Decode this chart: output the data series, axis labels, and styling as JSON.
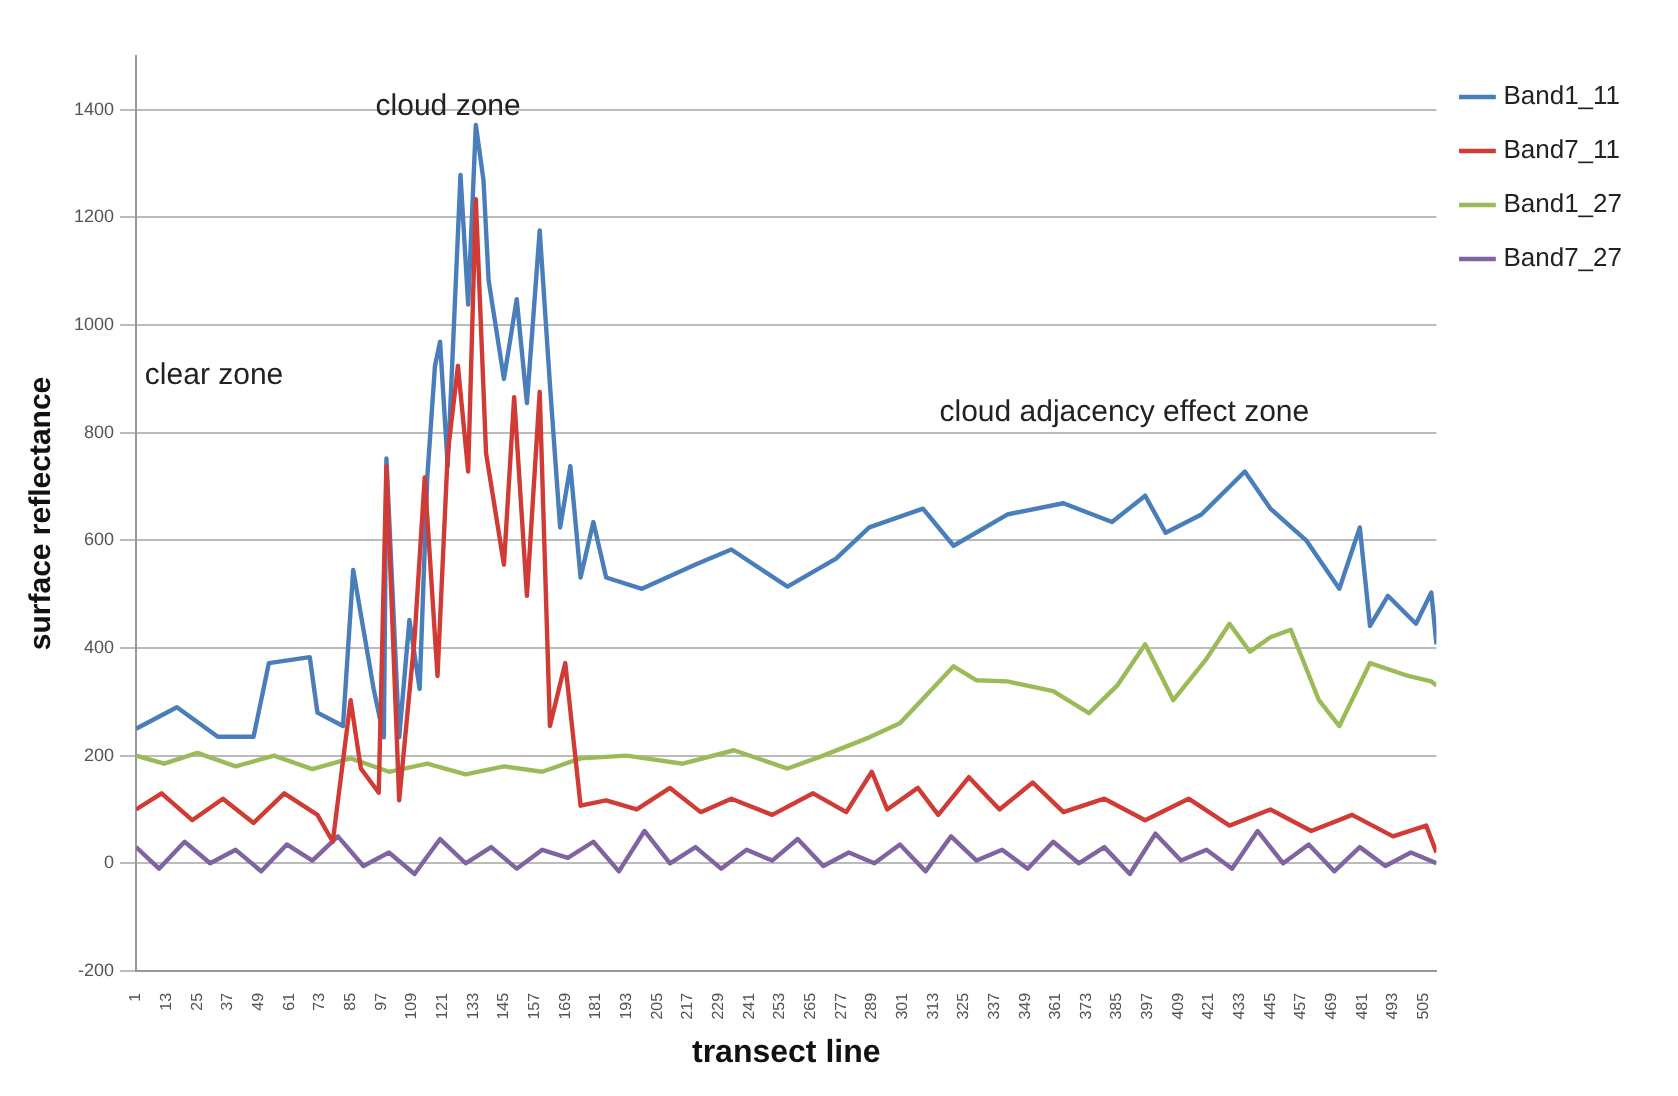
{
  "chart_data": {
    "type": "line",
    "xlabel": "transect line",
    "ylabel": "surface reflectance",
    "xlim": [
      1,
      510
    ],
    "xticks": [
      1,
      13,
      25,
      37,
      49,
      61,
      73,
      85,
      97,
      109,
      121,
      133,
      145,
      157,
      169,
      181,
      193,
      205,
      217,
      229,
      241,
      253,
      265,
      277,
      289,
      301,
      313,
      325,
      337,
      349,
      361,
      373,
      385,
      397,
      409,
      421,
      433,
      445,
      457,
      469,
      481,
      493,
      505
    ],
    "ylim": [
      -200,
      1500
    ],
    "yticks": [
      -200,
      0,
      200,
      400,
      600,
      800,
      1000,
      1200,
      1400
    ],
    "grid": "y",
    "legend": "top right",
    "marker": "none",
    "line_style": "solid",
    "annotations": [
      "clear zone",
      "cloud zone",
      "cloud adjacency effect zone"
    ],
    "series": [
      {
        "name": "Band1_11",
        "color": "#4a7ebb",
        "x": [
          1,
          17,
          33,
          47,
          53,
          69,
          72,
          82,
          86,
          94,
          98,
          99,
          104,
          108,
          112,
          115,
          118,
          120,
          123,
          128,
          131,
          134,
          137,
          139,
          145,
          150,
          154,
          159,
          163,
          167,
          171,
          175,
          180,
          185,
          199,
          220,
          234,
          256,
          275,
          288,
          309,
          321,
          342,
          364,
          383,
          396,
          404,
          418,
          435,
          445,
          459,
          472,
          480,
          484,
          491,
          502,
          508,
          510
        ],
        "values": [
          250,
          290,
          235,
          235,
          372,
          383,
          280,
          255,
          545,
          324,
          234,
          752,
          234,
          452,
          324,
          717,
          924,
          969,
          738,
          1279,
          1038,
          1372,
          1269,
          1083,
          900,
          1048,
          855,
          1176,
          890,
          624,
          738,
          531,
          634,
          531,
          510,
          555,
          583,
          514,
          566,
          624,
          659,
          590,
          648,
          669,
          634,
          683,
          614,
          648,
          728,
          659,
          600,
          510,
          624,
          441,
          497,
          445,
          503,
          407
        ]
      },
      {
        "name": "Band7_11",
        "color": "#d03b35",
        "x": [
          1,
          11,
          23,
          35,
          47,
          59,
          72,
          78,
          85,
          89,
          96,
          99,
          104,
          110,
          114,
          119,
          123,
          127,
          131,
          134,
          138,
          145,
          149,
          154,
          159,
          163,
          169,
          175,
          185,
          197,
          210,
          222,
          234,
          250,
          266,
          279,
          289,
          295,
          307,
          315,
          327,
          339,
          352,
          364,
          380,
          396,
          413,
          429,
          445,
          461,
          477,
          493,
          506,
          510
        ],
        "values": [
          100,
          130,
          80,
          120,
          75,
          130,
          90,
          40,
          303,
          176,
          131,
          738,
          117,
          417,
          717,
          348,
          762,
          924,
          728,
          1234,
          762,
          555,
          866,
          497,
          876,
          255,
          372,
          107,
          117,
          100,
          140,
          95,
          120,
          90,
          130,
          95,
          170,
          100,
          140,
          90,
          160,
          100,
          150,
          95,
          120,
          80,
          120,
          70,
          100,
          60,
          90,
          50,
          70,
          20
        ]
      },
      {
        "name": "Band1_27",
        "color": "#9bbb59",
        "x": [
          1,
          12,
          25,
          40,
          55,
          70,
          85,
          100,
          115,
          130,
          145,
          160,
          175,
          193,
          215,
          235,
          256,
          270,
          288,
          300,
          321,
          330,
          342,
          360,
          374,
          385,
          396,
          407,
          420,
          429,
          437,
          445,
          453,
          464,
          472,
          484,
          499,
          508,
          510
        ],
        "values": [
          200,
          185,
          205,
          180,
          200,
          175,
          195,
          170,
          185,
          165,
          180,
          170,
          195,
          200,
          185,
          210,
          176,
          200,
          234,
          260,
          366,
          340,
          338,
          320,
          279,
          330,
          407,
          303,
          380,
          445,
          393,
          420,
          434,
          303,
          255,
          372,
          348,
          338,
          330
        ]
      },
      {
        "name": "Band7_27",
        "color": "#8064a2",
        "x": [
          1,
          10,
          20,
          30,
          40,
          50,
          60,
          70,
          80,
          90,
          100,
          110,
          120,
          130,
          140,
          150,
          160,
          170,
          180,
          190,
          200,
          210,
          220,
          230,
          240,
          250,
          260,
          270,
          280,
          290,
          300,
          310,
          320,
          330,
          340,
          350,
          360,
          370,
          380,
          390,
          400,
          410,
          420,
          430,
          440,
          450,
          460,
          470,
          480,
          490,
          500,
          510
        ],
        "values": [
          30,
          -10,
          40,
          0,
          25,
          -15,
          35,
          5,
          50,
          -5,
          20,
          -20,
          45,
          0,
          30,
          -10,
          25,
          10,
          40,
          -15,
          60,
          0,
          30,
          -10,
          25,
          5,
          45,
          -5,
          20,
          0,
          35,
          -15,
          50,
          5,
          25,
          -10,
          40,
          0,
          30,
          -20,
          55,
          5,
          25,
          -10,
          60,
          0,
          35,
          -15,
          30,
          -5,
          20,
          0
        ]
      }
    ]
  }
}
